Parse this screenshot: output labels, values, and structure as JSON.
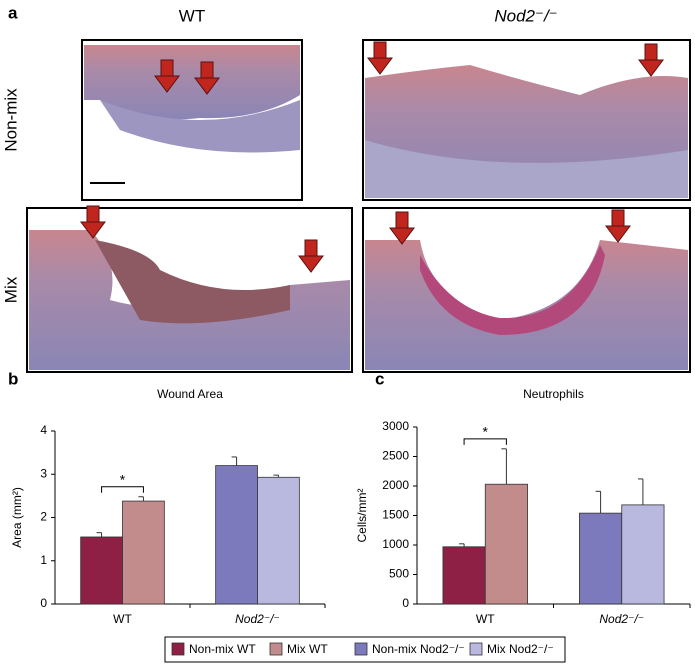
{
  "panel_a": {
    "label": "a",
    "columns": [
      "WT",
      "Nod2⁻/⁻"
    ],
    "rows": [
      "Non-mix",
      "Mix"
    ]
  },
  "chart_data": [
    {
      "type": "bar",
      "panel_label": "b",
      "title": "Wound Area",
      "ylabel": "Area (mm²)",
      "categories": [
        "WT",
        "Nod2⁻/⁻"
      ],
      "significance": "*",
      "series": [
        {
          "name": "Non-mix WT",
          "color": "#8e1f45",
          "values": [
            1.55,
            null
          ],
          "errors": [
            0.1,
            null
          ]
        },
        {
          "name": "Mix WT",
          "color": "#c28b8c",
          "values": [
            2.38,
            null
          ],
          "errors": [
            0.1,
            null
          ]
        },
        {
          "name": "Non-mix Nod2⁻/⁻",
          "color": "#7c79bd",
          "values": [
            null,
            3.2
          ],
          "errors": [
            null,
            0.2
          ]
        },
        {
          "name": "Mix Nod2⁻/⁻",
          "color": "#b9b8de",
          "values": [
            null,
            2.93
          ],
          "errors": [
            null,
            0.05
          ]
        }
      ],
      "ylim": [
        0,
        4
      ],
      "yticks": [
        0,
        1,
        2,
        3,
        4
      ]
    },
    {
      "type": "bar",
      "panel_label": "c",
      "title": "Neutrophils",
      "ylabel": "Cells/mm²",
      "categories": [
        "WT",
        "Nod2⁻/⁻"
      ],
      "significance": "*",
      "series": [
        {
          "color": "#8e1f45",
          "values": [
            970,
            null
          ],
          "errors": [
            50,
            null
          ]
        },
        {
          "color": "#c28b8c",
          "values": [
            2030,
            null
          ],
          "errors": [
            600,
            null
          ]
        },
        {
          "color": "#7c79bd",
          "values": [
            null,
            1540
          ],
          "errors": [
            null,
            370
          ]
        },
        {
          "color": "#b9b8de",
          "values": [
            null,
            1680
          ],
          "errors": [
            null,
            440
          ]
        }
      ],
      "ylim": [
        0,
        3000
      ],
      "yticks": [
        0,
        500,
        1000,
        1500,
        2000,
        2500,
        3000
      ]
    }
  ]
}
